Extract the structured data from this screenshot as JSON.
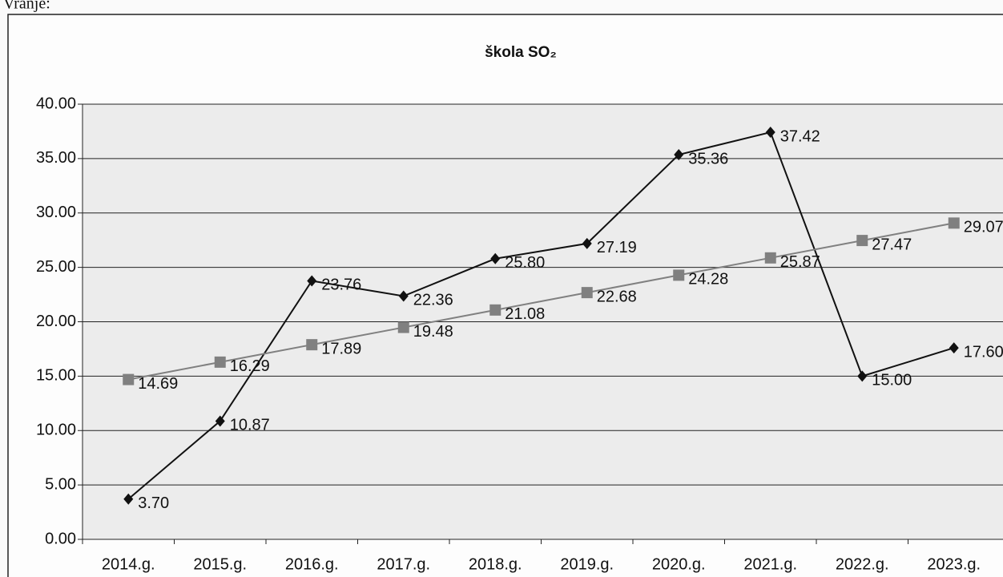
{
  "chart_data": {
    "type": "line",
    "page_label": "Vranje:",
    "title": "škola SO₂",
    "categories": [
      "2014.g.",
      "2015.g.",
      "2016.g.",
      "2017.g.",
      "2018.g.",
      "2019.g.",
      "2020.g.",
      "2021.g.",
      "2022.g.",
      "2023.g."
    ],
    "series": [
      {
        "color": "#111111",
        "marker": "diamond",
        "values": [
          3.7,
          10.87,
          23.76,
          22.36,
          25.8,
          27.19,
          35.36,
          37.42,
          15.0,
          17.6
        ],
        "value_labels": [
          "3.70",
          "10.87",
          "23.76",
          "22.36",
          "25.80",
          "27.19",
          "35.36",
          "37.42",
          "15.00",
          "17.60"
        ]
      },
      {
        "color": "#808080",
        "marker": "square",
        "values": [
          14.69,
          16.29,
          17.89,
          19.48,
          21.08,
          22.68,
          24.28,
          25.87,
          27.47,
          29.07
        ],
        "value_labels": [
          "14.69",
          "16.29",
          "17.89",
          "19.48",
          "21.08",
          "22.68",
          "24.28",
          "25.87",
          "27.47",
          "29.07"
        ]
      }
    ],
    "ylim": [
      0,
      40
    ],
    "yticks": [
      {
        "value": 0,
        "label": "0.00"
      },
      {
        "value": 5,
        "label": "5.00"
      },
      {
        "value": 10,
        "label": "10.00"
      },
      {
        "value": 15,
        "label": "15.00"
      },
      {
        "value": 20,
        "label": "20.00"
      },
      {
        "value": 25,
        "label": "25.00"
      },
      {
        "value": 30,
        "label": "30.00"
      },
      {
        "value": 35,
        "label": "35.00"
      },
      {
        "value": 40,
        "label": "40.00"
      }
    ],
    "grid": true
  }
}
